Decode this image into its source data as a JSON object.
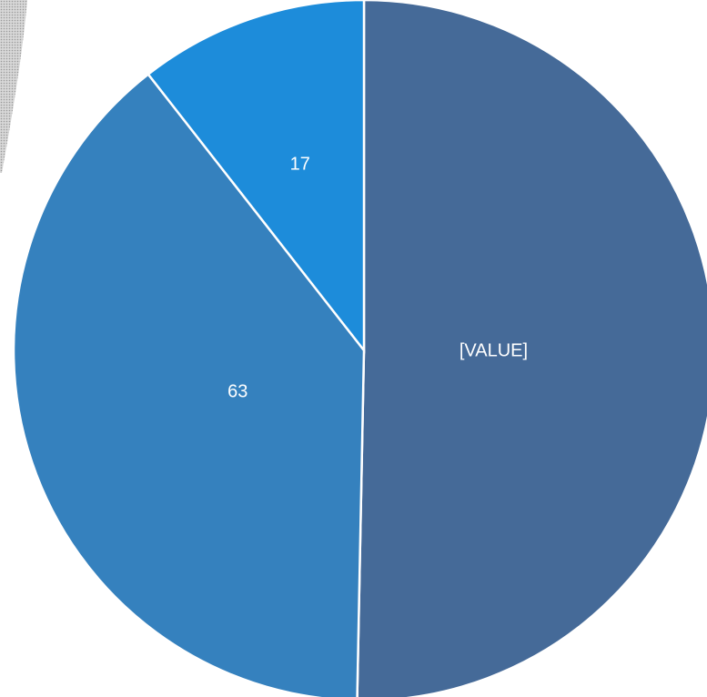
{
  "chart_data": {
    "type": "pie",
    "title": "",
    "start_angle_deg": 0,
    "direction": "clockwise",
    "legend": "none",
    "slices": [
      {
        "label": "[VALUE]",
        "value": 81,
        "color": "#456A98"
      },
      {
        "label": "63",
        "value": 63,
        "color": "#3581BE"
      },
      {
        "label": "17",
        "value": 17,
        "color": "#1D8CDA"
      }
    ]
  }
}
